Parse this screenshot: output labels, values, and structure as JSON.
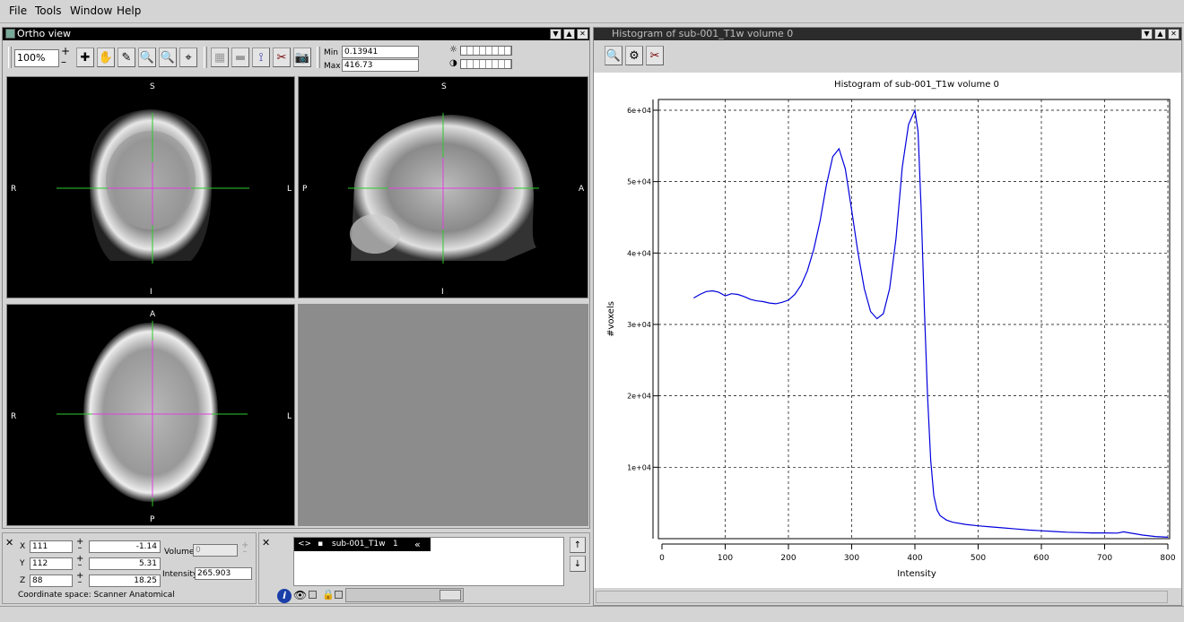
{
  "menu": {
    "file": "File",
    "tools": "Tools",
    "window": "Window",
    "help": "Help"
  },
  "ortho": {
    "title": "Ortho view",
    "zoom": "100%",
    "min_label": "Min",
    "min_value": "0.13941",
    "max_label": "Max",
    "max_value": "416.73",
    "coronal": {
      "top": "S",
      "bottom": "I",
      "left": "R",
      "right": "L"
    },
    "sagittal": {
      "top": "S",
      "bottom": "I",
      "left": "P",
      "right": "A"
    },
    "axial": {
      "top": "A",
      "bottom": "P",
      "left": "R",
      "right": "L"
    }
  },
  "location": {
    "x_label": "X",
    "x_vox": "111",
    "x_world": "-1.14",
    "y_label": "Y",
    "y_vox": "112",
    "y_world": "5.31",
    "z_label": "Z",
    "z_vox": "88",
    "z_world": "18.25",
    "volume_label": "Volume",
    "volume_value": "0",
    "intensity_label": "Intensity",
    "intensity_value": "265.903",
    "coord_space": "Coordinate space: Scanner Anatomical"
  },
  "overlays": {
    "item_name": "sub-001_T1w",
    "item_index": "1"
  },
  "histogram": {
    "window_title": "Histogram of sub-001_T1w volume 0"
  },
  "chart_data": {
    "type": "line",
    "title": "Histogram of sub-001_T1w volume 0",
    "xlabel": "Intensity",
    "ylabel": "#voxels",
    "xlim": [
      0,
      800
    ],
    "ylim": [
      0,
      61000
    ],
    "xticks": [
      "0",
      "100",
      "200",
      "300",
      "400",
      "500",
      "600",
      "700",
      "800"
    ],
    "yticks": [
      "1e+04",
      "2e+04",
      "3e+04",
      "4e+04",
      "5e+04",
      "6e+04"
    ],
    "grid": true,
    "line_color": "#0000dd",
    "series": [
      {
        "x": [
          50,
          60,
          70,
          80,
          90,
          100,
          110,
          120,
          130,
          140,
          150,
          160,
          170,
          180,
          190,
          200,
          210,
          220,
          230,
          240,
          250,
          260,
          270,
          280,
          290,
          300,
          310,
          320,
          330,
          340,
          350,
          360,
          370,
          380,
          390,
          400,
          405,
          410,
          415,
          420,
          425,
          430,
          435,
          440,
          450,
          460,
          480,
          500,
          520,
          540,
          560,
          580,
          600,
          620,
          640,
          660,
          680,
          700,
          720,
          730,
          740,
          760,
          780,
          800
        ],
        "y": [
          33700,
          34200,
          34600,
          34700,
          34500,
          34000,
          34300,
          34200,
          33900,
          33500,
          33300,
          33200,
          33000,
          32900,
          33100,
          33400,
          34200,
          35500,
          37500,
          40500,
          44500,
          49500,
          53500,
          54600,
          51800,
          46000,
          40000,
          35000,
          31800,
          30800,
          31500,
          35000,
          42000,
          52000,
          58000,
          60000,
          57000,
          46000,
          32000,
          20000,
          11000,
          6000,
          4000,
          3200,
          2600,
          2300,
          2000,
          1800,
          1650,
          1500,
          1350,
          1200,
          1100,
          1000,
          900,
          850,
          800,
          800,
          780,
          950,
          800,
          500,
          300,
          200
        ]
      }
    ]
  }
}
